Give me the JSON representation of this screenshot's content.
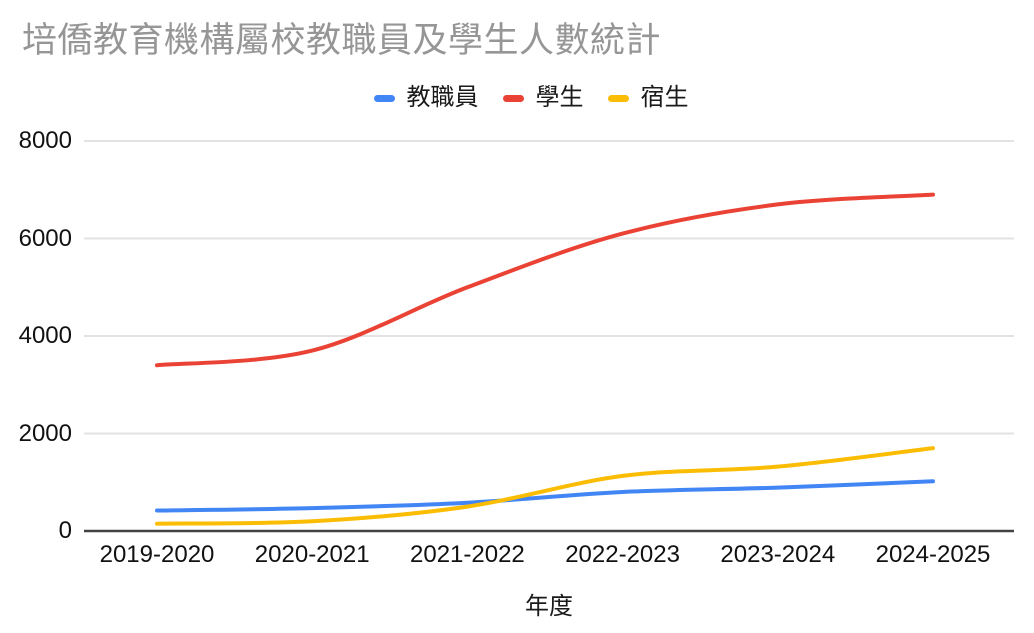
{
  "chart_data": {
    "type": "line",
    "title": "培僑教育機構屬校教職員及學生人數統計",
    "xlabel": "年度",
    "ylabel": "",
    "categories": [
      "2019-2020",
      "2020-2021",
      "2021-2022",
      "2022-2023",
      "2023-2024",
      "2024-2025"
    ],
    "series": [
      {
        "name": "教職員",
        "color": "#4285F4",
        "values": [
          420,
          470,
          580,
          800,
          890,
          1020
        ]
      },
      {
        "name": "學生",
        "color": "#EA4335",
        "values": [
          3400,
          3700,
          5000,
          6100,
          6700,
          6900
        ]
      },
      {
        "name": "宿生",
        "color": "#FBBC04",
        "values": [
          150,
          200,
          500,
          1130,
          1320,
          1700
        ]
      }
    ],
    "ylim": [
      0,
      8000
    ],
    "yticks": [
      0,
      2000,
      4000,
      6000,
      8000
    ],
    "grid": true,
    "smooth": true,
    "legend_position": "top"
  },
  "colors": {
    "title_text": "#969696",
    "axis_text": "#111111",
    "gridline": "#e3e3e3",
    "baseline": "#424242",
    "background": "#ffffff"
  }
}
